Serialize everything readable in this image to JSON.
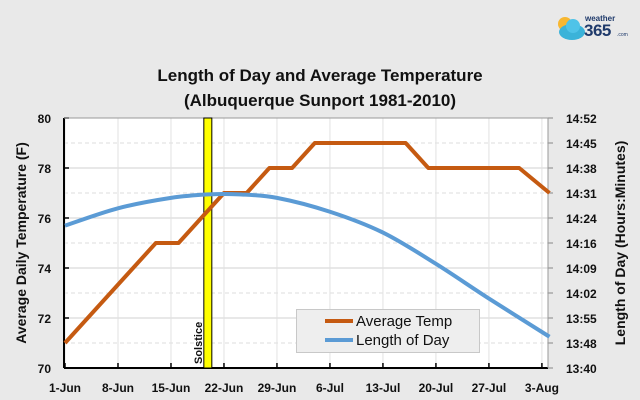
{
  "logo": {
    "text_top": "weather",
    "text_main": "365",
    "text_small": ".com"
  },
  "chart_data": {
    "type": "line",
    "title": "Length of Day and Average Temperature",
    "subtitle": "(Albuquerque Sunport 1981-2010)",
    "ylabel": "Average Daily Temperature (F)",
    "y2label": "Length of Day (Hours:Minutes)",
    "ylim": [
      70,
      80
    ],
    "yticks": [
      "70",
      "72",
      "74",
      "76",
      "78",
      "80"
    ],
    "y2lim": [
      "13:40",
      "14:52"
    ],
    "y2ticks": [
      "13:40",
      "13:48",
      "13:55",
      "14:02",
      "14:09",
      "14:16",
      "14:24",
      "14:31",
      "14:38",
      "14:45",
      "14:52"
    ],
    "xticks": [
      "1-Jun",
      "8-Jun",
      "15-Jun",
      "22-Jun",
      "29-Jun",
      "6-Jul",
      "13-Jul",
      "20-Jul",
      "27-Jul",
      "3-Aug"
    ],
    "grid": true,
    "legend_position": "bottom-right",
    "annotation": {
      "label": "Solstice",
      "date": "20-Jun",
      "color": "#ffff00"
    },
    "series": [
      {
        "name": "Average Temp",
        "axis": "left",
        "color": "#c55a11",
        "points": [
          [
            "1-Jun",
            71
          ],
          [
            "13-Jun",
            75
          ],
          [
            "16-Jun",
            75
          ],
          [
            "22-Jun",
            77
          ],
          [
            "25-Jun",
            77
          ],
          [
            "28-Jun",
            78
          ],
          [
            "1-Jul",
            78
          ],
          [
            "4-Jul",
            79
          ],
          [
            "16-Jul",
            79
          ],
          [
            "19-Jul",
            78
          ],
          [
            "31-Jul",
            78
          ],
          [
            "4-Aug",
            77
          ]
        ]
      },
      {
        "name": "Length of Day",
        "axis": "right",
        "color": "#5b9bd5",
        "points": [
          [
            "1-Jun",
            "14:21"
          ],
          [
            "8-Jun",
            "14:26"
          ],
          [
            "15-Jun",
            "14:29"
          ],
          [
            "20-Jun",
            "14:30"
          ],
          [
            "24-Jun",
            "14:30"
          ],
          [
            "29-Jun",
            "14:29"
          ],
          [
            "6-Jul",
            "14:25"
          ],
          [
            "13-Jul",
            "14:19"
          ],
          [
            "20-Jul",
            "14:10"
          ],
          [
            "27-Jul",
            "14:00"
          ],
          [
            "4-Aug",
            "13:49"
          ]
        ]
      }
    ]
  }
}
